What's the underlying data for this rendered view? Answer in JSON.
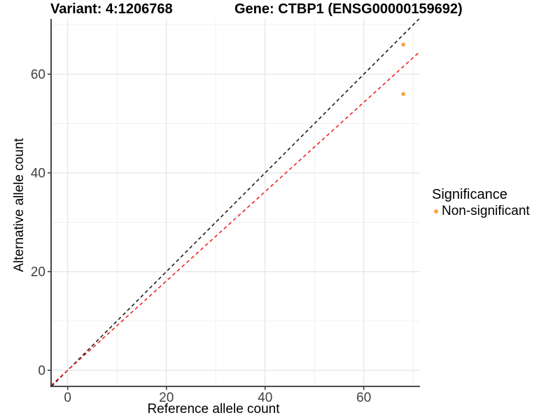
{
  "titles": {
    "left": "Variant: 4:1206768",
    "right": "Gene: CTBP1 (ENSG00000159692)"
  },
  "chart_data": {
    "type": "scatter",
    "title": "Variant: 4:1206768  |  Gene: CTBP1 (ENSG00000159692)",
    "xlabel": "Reference allele count",
    "ylabel": "Alternative allele count",
    "x_ticks": [
      0,
      20,
      40,
      60
    ],
    "y_ticks": [
      0,
      20,
      40,
      60
    ],
    "x_minor_gridlines": [
      10,
      30,
      50,
      70
    ],
    "y_minor_gridlines": [
      10,
      30,
      50,
      70
    ],
    "xlim": [
      -3.4,
      71.4
    ],
    "ylim": [
      -3.3,
      71.2
    ],
    "grid": "major+minor, light gray on white",
    "legend_position": "right",
    "points": [
      {
        "x": 68,
        "y": 66,
        "series": "Non-significant"
      },
      {
        "x": 68,
        "y": 56,
        "series": "Non-significant"
      }
    ],
    "lines": [
      {
        "name": "identity-line",
        "slope": 1,
        "intercept": 0,
        "color": "#1a1a1a",
        "style": "dashed"
      },
      {
        "name": "expected-ratio-line",
        "slope": 0.905,
        "intercept": 0,
        "color": "#ee2222",
        "style": "dashed"
      }
    ],
    "legend": {
      "title": "Significance",
      "items": [
        {
          "label": "Non-significant",
          "color": "#f9a23c"
        }
      ]
    }
  },
  "colors": {
    "background": "#ffffff",
    "point": "#f9a23c",
    "grid_major": "#e4e4e4",
    "grid_minor": "#f1f1f1",
    "axis_line": "#333333",
    "tick_text": "#404040"
  }
}
